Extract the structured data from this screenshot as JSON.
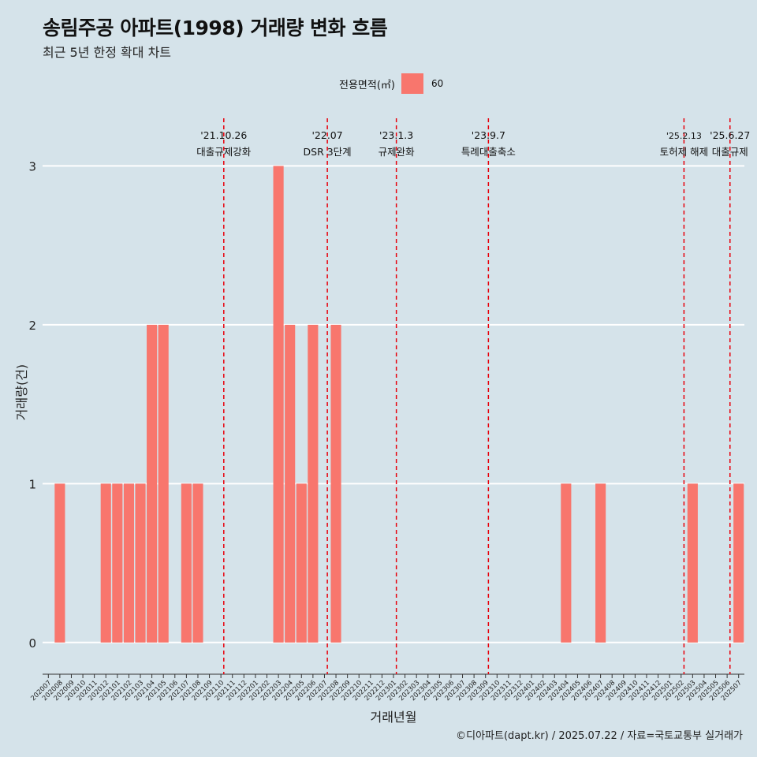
{
  "title": "송림주공 아파트(1998) 거래량 변화 흐름",
  "subtitle": "최근 5년 한정 확대 차트",
  "caption": "©디아파트(dapt.kr) / 2025.07.22 / 자료=국토교통부 실거래가",
  "legend": {
    "title": "전용면적(㎡)",
    "label": "60",
    "color": "#f8766d"
  },
  "colors": {
    "background": "#d5e3ea",
    "grid": "#ffffff",
    "bar": "#f8766d",
    "event_line": "#e8000b"
  },
  "chart_data": {
    "type": "bar",
    "xlabel": "거래년월",
    "ylabel": "거래량(건)",
    "ylim": [
      -0.15,
      3.3
    ],
    "yticks": [
      0,
      1,
      2,
      3
    ],
    "grid": true,
    "legend_position": "top",
    "categories": [
      "202007",
      "202008",
      "202009",
      "202010",
      "202011",
      "202012",
      "202101",
      "202102",
      "202103",
      "202104",
      "202105",
      "202106",
      "202107",
      "202108",
      "202109",
      "202110",
      "202111",
      "202112",
      "202201",
      "202202",
      "202203",
      "202204",
      "202205",
      "202206",
      "202207",
      "202208",
      "202209",
      "202210",
      "202211",
      "202212",
      "202301",
      "202302",
      "202303",
      "202304",
      "202305",
      "202306",
      "202307",
      "202308",
      "202309",
      "202310",
      "202311",
      "202312",
      "202401",
      "202402",
      "202403",
      "202404",
      "202405",
      "202406",
      "202407",
      "202408",
      "202409",
      "202410",
      "202411",
      "202412",
      "202501",
      "202502",
      "202503",
      "202504",
      "202505",
      "202506",
      "202507"
    ],
    "series": [
      {
        "name": "60",
        "values": [
          0,
          1,
          0,
          0,
          0,
          1,
          1,
          1,
          1,
          2,
          2,
          0,
          1,
          1,
          0,
          0,
          0,
          0,
          0,
          0,
          3,
          2,
          1,
          2,
          0,
          2,
          0,
          0,
          0,
          0,
          0,
          0,
          0,
          0,
          0,
          0,
          0,
          0,
          0,
          0,
          0,
          0,
          0,
          0,
          0,
          1,
          0,
          0,
          1,
          0,
          0,
          0,
          0,
          0,
          0,
          0,
          1,
          0,
          0,
          0,
          1
        ]
      }
    ],
    "annotations": [
      {
        "at": "202110",
        "date": "'21.10.26",
        "label": "대출규제강화"
      },
      {
        "at": "202207",
        "date": "'22.07",
        "label": "DSR 3단계"
      },
      {
        "at": "202301",
        "date": "'23.1.3",
        "label": "규제완화"
      },
      {
        "at": "202309",
        "date": "'23.9.7",
        "label": "특례대출축소"
      },
      {
        "at": "202502",
        "date": "'25.2.13",
        "label": "토허제 해제"
      },
      {
        "at": "202506",
        "date": "'25.6.27",
        "label": "대출규제"
      }
    ]
  }
}
